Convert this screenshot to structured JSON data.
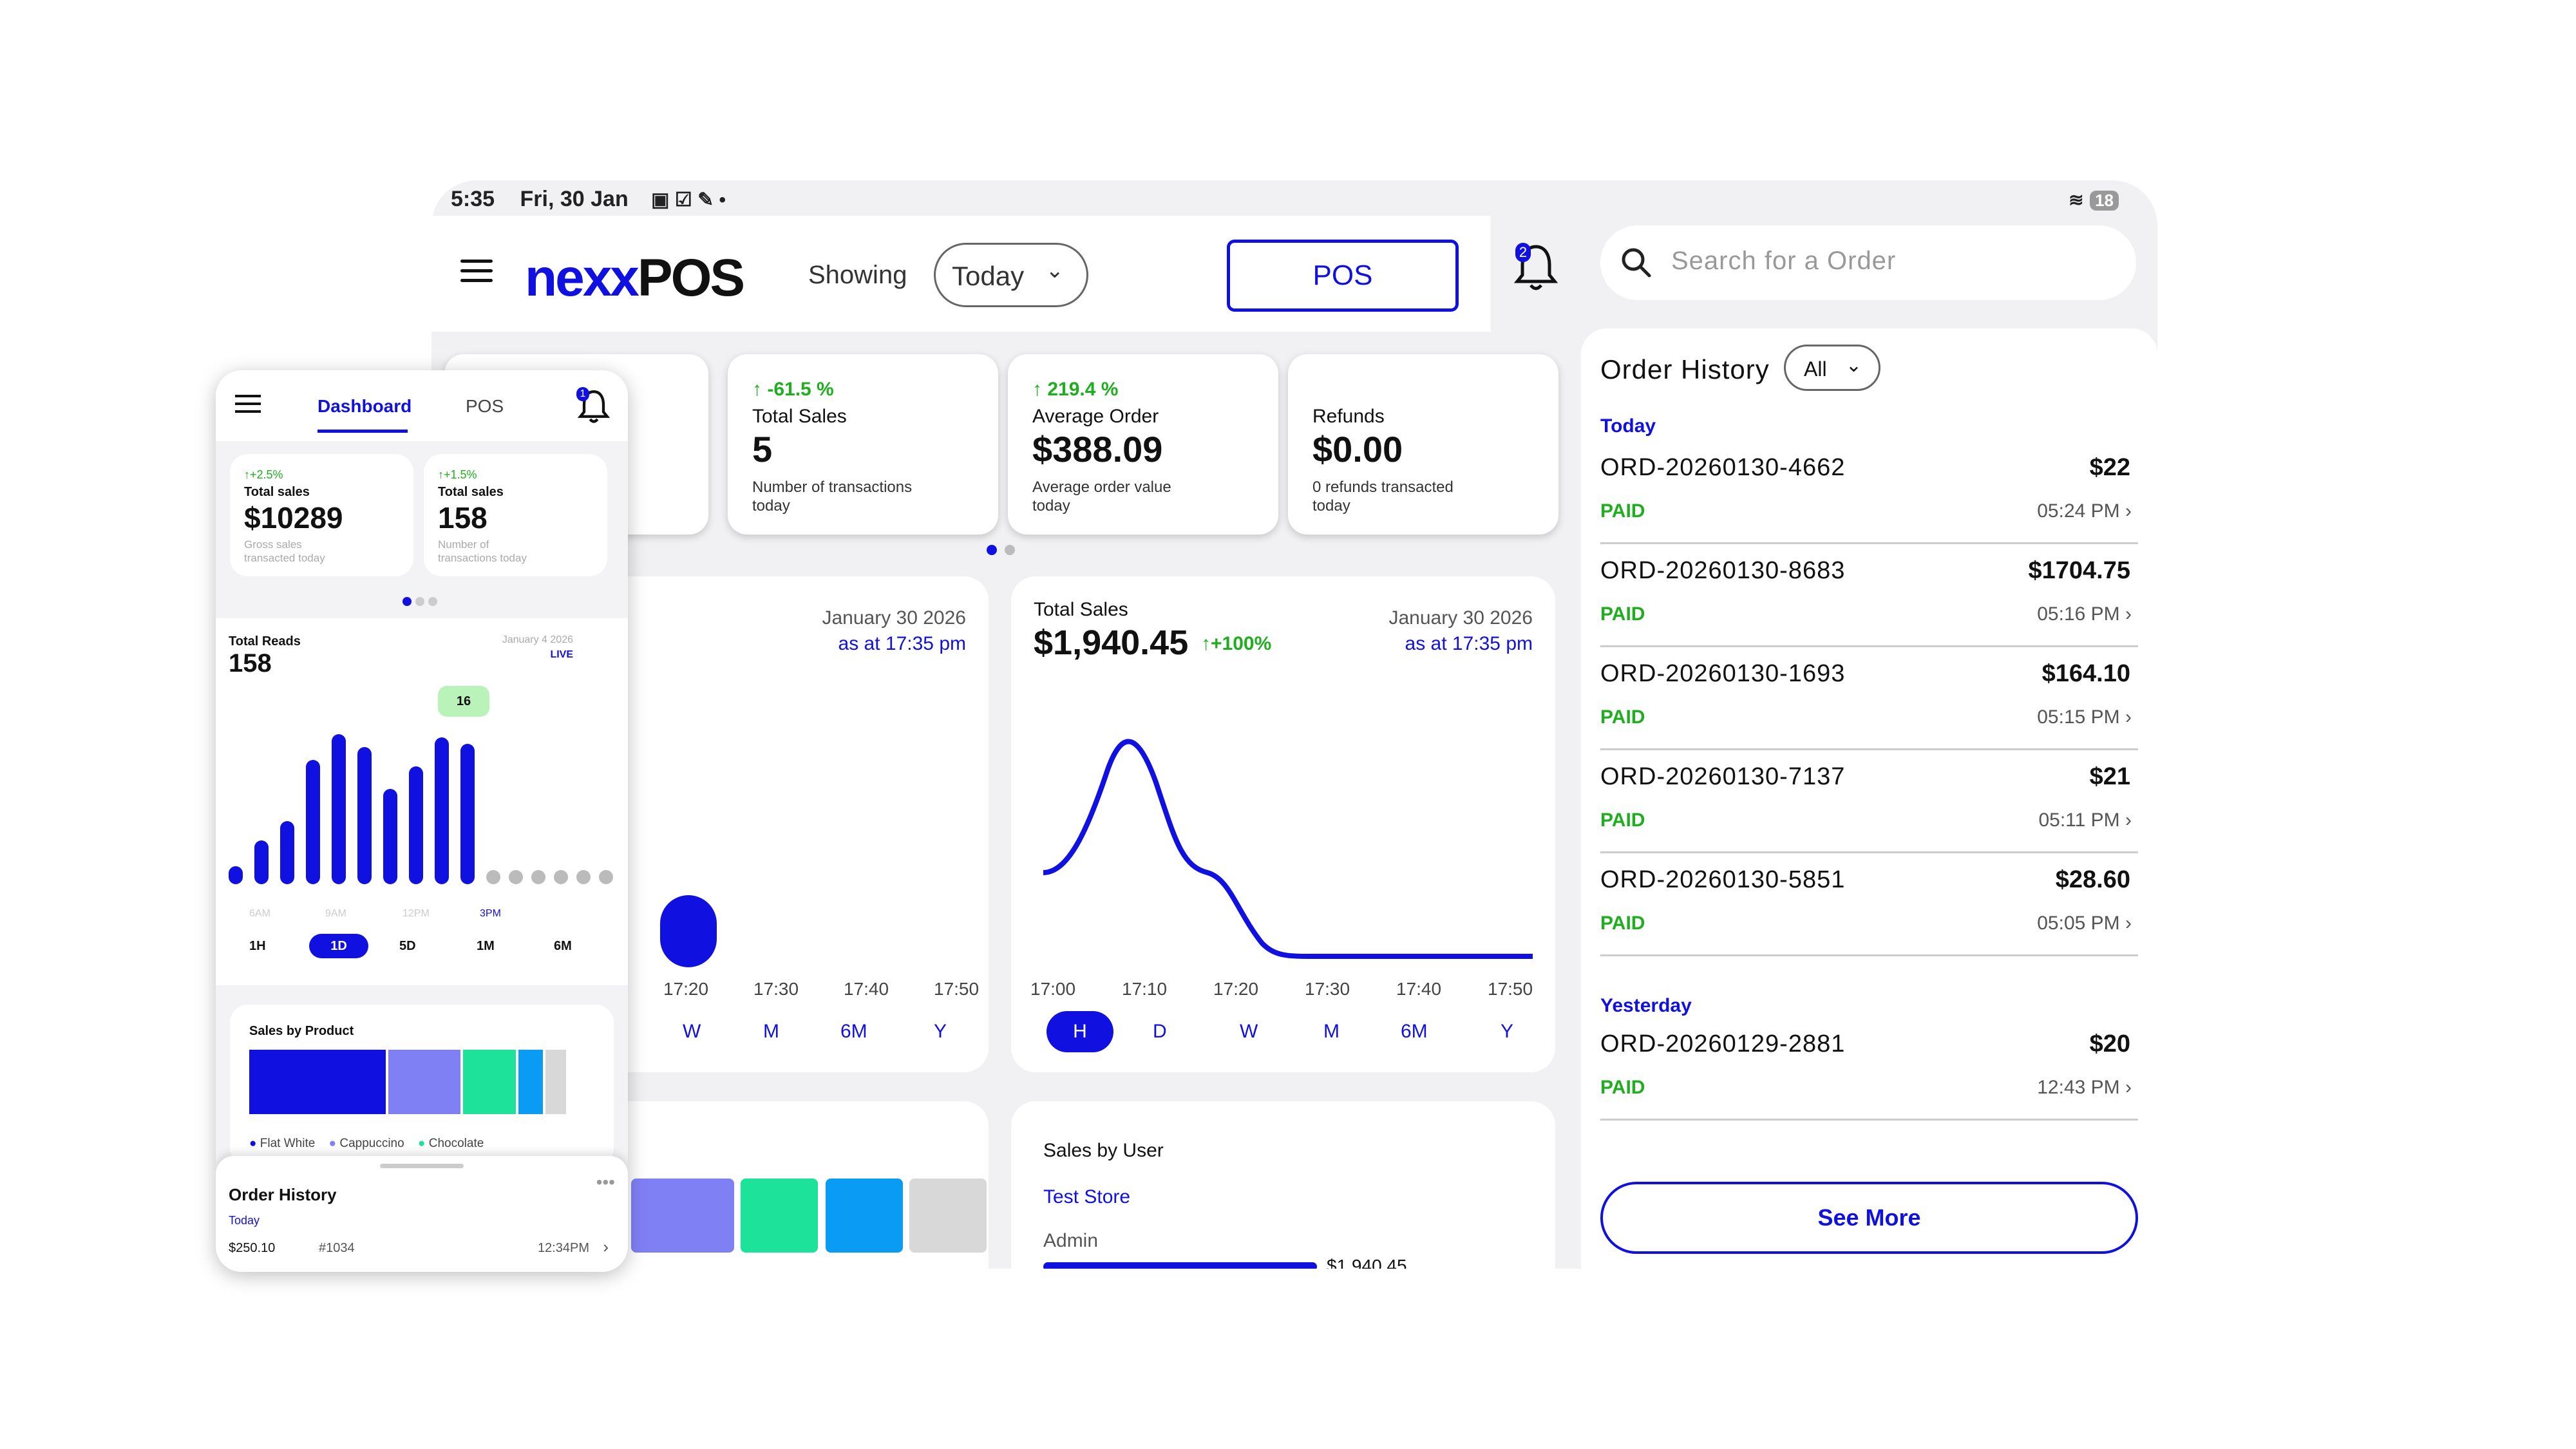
{
  "status_bar": {
    "time": "5:35",
    "date": "Fri, 30 Jan",
    "battery": "18"
  },
  "header": {
    "logo_blue": "nexx",
    "logo_dark": "POS",
    "showing_label": "Showing",
    "period": "Today",
    "pos_button": "POS",
    "bell_badge": "2"
  },
  "search": {
    "placeholder": "Search for a Order"
  },
  "kpis": [
    {
      "change": "-61.5 %",
      "title": "Total Sales",
      "value": "5",
      "sub": "Number of transactions today"
    },
    {
      "change": "219.4 %",
      "title": "Average Order",
      "value": "$388.09",
      "sub": "Average order value today"
    },
    {
      "change": "",
      "title": "Refunds",
      "value": "$0.00",
      "sub": "0 refunds transacted today"
    }
  ],
  "left_chart": {
    "date": "January 30 2026",
    "as_at": "as at 17:35 pm",
    "x_ticks": [
      "17:20",
      "17:30",
      "17:40",
      "17:50"
    ],
    "ranges": [
      "W",
      "M",
      "6M",
      "Y"
    ]
  },
  "sales_chart": {
    "title": "Total Sales",
    "value": "$1,940.45",
    "change": "+100%",
    "date": "January 30 2026",
    "as_at": "as at 17:35 pm",
    "ranges": [
      "H",
      "D",
      "W",
      "M",
      "6M",
      "Y"
    ],
    "active_range": "H"
  },
  "sales_by_user": {
    "title": "Sales by User",
    "store": "Test Store",
    "user": "Admin",
    "user_value": "$1,940.45"
  },
  "order_history": {
    "title": "Order History",
    "filter": "All",
    "today_label": "Today",
    "yesterday_label": "Yesterday",
    "today": [
      {
        "id": "ORD-20260130-4662",
        "amount": "$22",
        "status": "PAID",
        "time": "05:24 PM"
      },
      {
        "id": "ORD-20260130-8683",
        "amount": "$1704.75",
        "status": "PAID",
        "time": "05:16 PM"
      },
      {
        "id": "ORD-20260130-1693",
        "amount": "$164.10",
        "status": "PAID",
        "time": "05:15 PM"
      },
      {
        "id": "ORD-20260130-7137",
        "amount": "$21",
        "status": "PAID",
        "time": "05:11 PM"
      },
      {
        "id": "ORD-20260130-5851",
        "amount": "$28.60",
        "status": "PAID",
        "time": "05:05 PM"
      }
    ],
    "yesterday": [
      {
        "id": "ORD-20260129-2881",
        "amount": "$20",
        "status": "PAID",
        "time": "12:43 PM"
      }
    ],
    "see_more": "See More"
  },
  "phone": {
    "tabs": {
      "dashboard": "Dashboard",
      "pos": "POS"
    },
    "bell_badge": "1",
    "kpis": [
      {
        "change": "+2.5%",
        "title": "Total sales",
        "value": "$10289",
        "sub": "Gross sales transacted today"
      },
      {
        "change": "+1.5%",
        "title": "Total sales",
        "value": "158",
        "sub": "Number of transactions today"
      }
    ],
    "reads": {
      "title": "Total Reads",
      "value": "158",
      "date": "January 4 2026",
      "live": "LIVE",
      "tooltip": "16",
      "x_ticks": [
        "6AM",
        "9AM",
        "12PM",
        "3PM"
      ],
      "ranges": [
        "1H",
        "1D",
        "5D",
        "1M",
        "6M"
      ],
      "active_range": "1D"
    },
    "sales_by_product": {
      "title": "Sales by Product",
      "legend": [
        "Flat White",
        "Cappuccino",
        "Chocolate"
      ]
    },
    "order_history": {
      "title": "Order History",
      "today": "Today",
      "amount": "$250.10",
      "number": "#1034",
      "time": "12:34PM"
    }
  },
  "colors": {
    "brand": "#1010e0",
    "positive": "#1fae1f",
    "lavender": "#8080f5",
    "mint": "#1de39a",
    "sky": "#0a9cf5",
    "gray": "#d8d8d8"
  }
}
